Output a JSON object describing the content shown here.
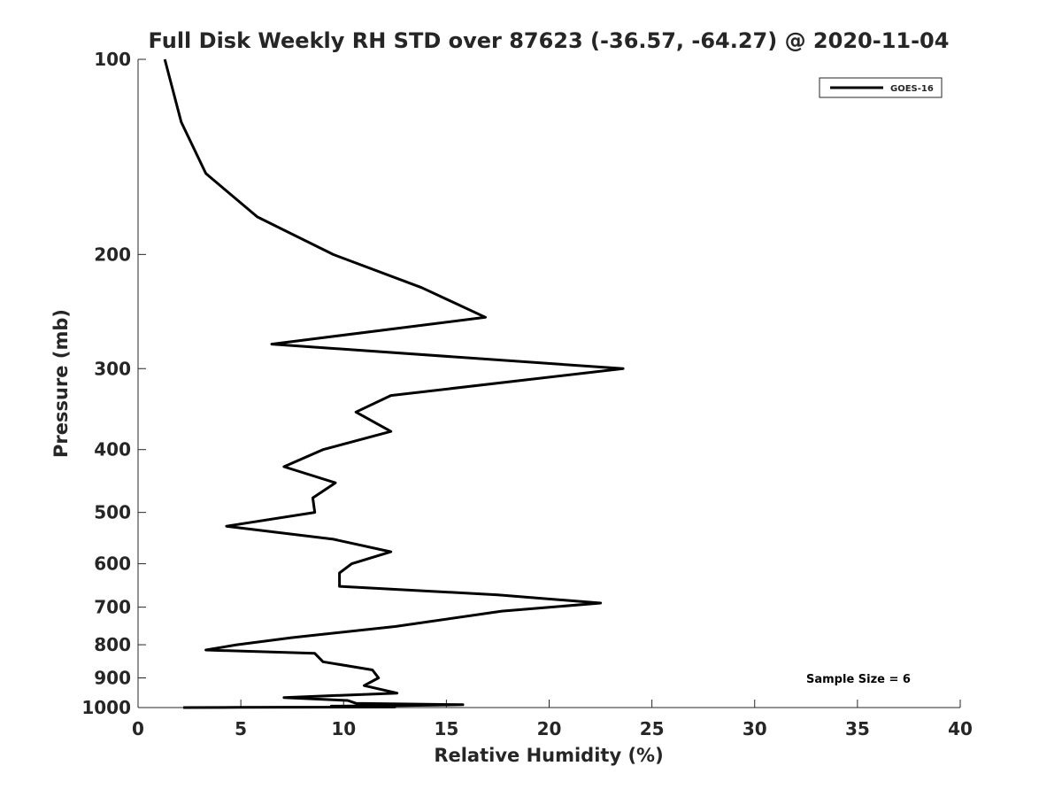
{
  "chart_data": {
    "type": "line",
    "title": "Full Disk Weekly RH STD over 87623 (-36.57, -64.27) @ 2020-11-04",
    "xlabel": "Relative Humidity (%)",
    "ylabel": "Pressure (mb)",
    "xlim": [
      0,
      40
    ],
    "ylim": [
      100,
      1000
    ],
    "yscale": "log",
    "yreversed": true,
    "grid": false,
    "x_ticks": [
      0,
      5,
      10,
      15,
      20,
      25,
      30,
      35,
      40
    ],
    "x_tick_labels": [
      "0",
      "5",
      "10",
      "15",
      "20",
      "25",
      "30",
      "35",
      "40"
    ],
    "y_ticks": [
      100,
      200,
      300,
      400,
      500,
      600,
      700,
      800,
      900,
      1000
    ],
    "y_tick_labels": [
      "100",
      "200",
      "300",
      "400",
      "500",
      "600",
      "700",
      "800",
      "900",
      "1000"
    ],
    "legend": {
      "placement": "top-right",
      "entries": [
        "GOES-16"
      ]
    },
    "annotation": "Sample Size = 6",
    "series": [
      {
        "name": "GOES-16",
        "color": "#000000",
        "points": [
          [
            1.3,
            100
          ],
          [
            2.1,
            125
          ],
          [
            3.3,
            150
          ],
          [
            5.8,
            175
          ],
          [
            9.5,
            200
          ],
          [
            13.8,
            225
          ],
          [
            16.9,
            250
          ],
          [
            6.5,
            275
          ],
          [
            23.6,
            300
          ],
          [
            12.3,
            330
          ],
          [
            10.6,
            350
          ],
          [
            12.3,
            375
          ],
          [
            9.0,
            400
          ],
          [
            7.1,
            425
          ],
          [
            9.6,
            450
          ],
          [
            8.5,
            475
          ],
          [
            8.6,
            500
          ],
          [
            4.3,
            525
          ],
          [
            9.5,
            550
          ],
          [
            12.3,
            575
          ],
          [
            10.4,
            600
          ],
          [
            9.8,
            620
          ],
          [
            9.8,
            650
          ],
          [
            17.5,
            670
          ],
          [
            22.5,
            690
          ],
          [
            17.7,
            710
          ],
          [
            12.5,
            750
          ],
          [
            7.5,
            780
          ],
          [
            4.8,
            800
          ],
          [
            3.3,
            815
          ],
          [
            8.6,
            825
          ],
          [
            9.0,
            850
          ],
          [
            11.4,
            875
          ],
          [
            11.7,
            900
          ],
          [
            11.0,
            925
          ],
          [
            12.6,
            950
          ],
          [
            7.1,
            965
          ],
          [
            10.2,
            975
          ],
          [
            10.6,
            985
          ],
          [
            15.8,
            990
          ],
          [
            12.8,
            993
          ],
          [
            9.4,
            995
          ],
          [
            9.6,
            997
          ],
          [
            12.5,
            998
          ],
          [
            4.8,
            999.3
          ],
          [
            2.2,
            1000
          ]
        ]
      }
    ]
  }
}
